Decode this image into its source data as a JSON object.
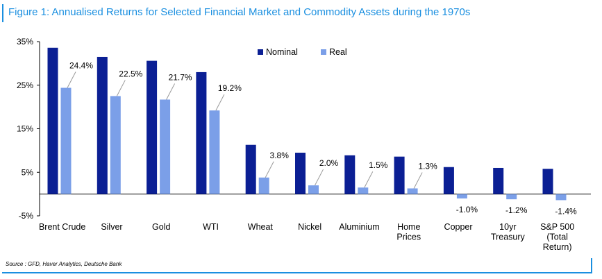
{
  "title": "Figure 1: Annualised Returns for Selected Financial Market and Commodity Assets during the 1970s",
  "source": "Source : GFD, Haver Analytics, Deutsche Bank",
  "colors": {
    "nominal": "#0b1f94",
    "real": "#7b9fe8",
    "frame": "#1a8fe0"
  },
  "chart_data": {
    "type": "bar",
    "title": "Figure 1: Annualised Returns for Selected Financial Market and Commodity Assets during the 1970s",
    "xlabel": "",
    "ylabel": "",
    "ylim": [
      -5,
      35
    ],
    "yticks": [
      35,
      25,
      15,
      5,
      -5
    ],
    "ytick_labels": [
      "35%",
      "25%",
      "15%",
      "5%",
      "-5%"
    ],
    "categories": [
      [
        "Brent Crude"
      ],
      [
        "Silver"
      ],
      [
        "Gold"
      ],
      [
        "WTI"
      ],
      [
        "Wheat"
      ],
      [
        "Nickel"
      ],
      [
        "Aluminium"
      ],
      [
        "Home",
        "Prices"
      ],
      [
        "Copper"
      ],
      [
        "10yr",
        "Treasury"
      ],
      [
        "S&P 500",
        "(Total",
        "Return)"
      ]
    ],
    "series": [
      {
        "name": "Nominal",
        "values": [
          33.6,
          31.5,
          30.6,
          28.0,
          11.3,
          9.5,
          8.9,
          8.6,
          6.2,
          6.0,
          5.8
        ]
      },
      {
        "name": "Real",
        "values": [
          24.4,
          22.5,
          21.7,
          19.2,
          3.8,
          2.0,
          1.5,
          1.3,
          -1.0,
          -1.2,
          -1.4
        ]
      }
    ],
    "real_labels": [
      "24.4%",
      "22.5%",
      "21.7%",
      "19.2%",
      "3.8%",
      "2.0%",
      "1.5%",
      "1.3%",
      "-1.0%",
      "-1.2%",
      "-1.4%"
    ],
    "legend": {
      "position": "top-center",
      "entries": [
        "Nominal",
        "Real"
      ]
    },
    "grid": false
  }
}
